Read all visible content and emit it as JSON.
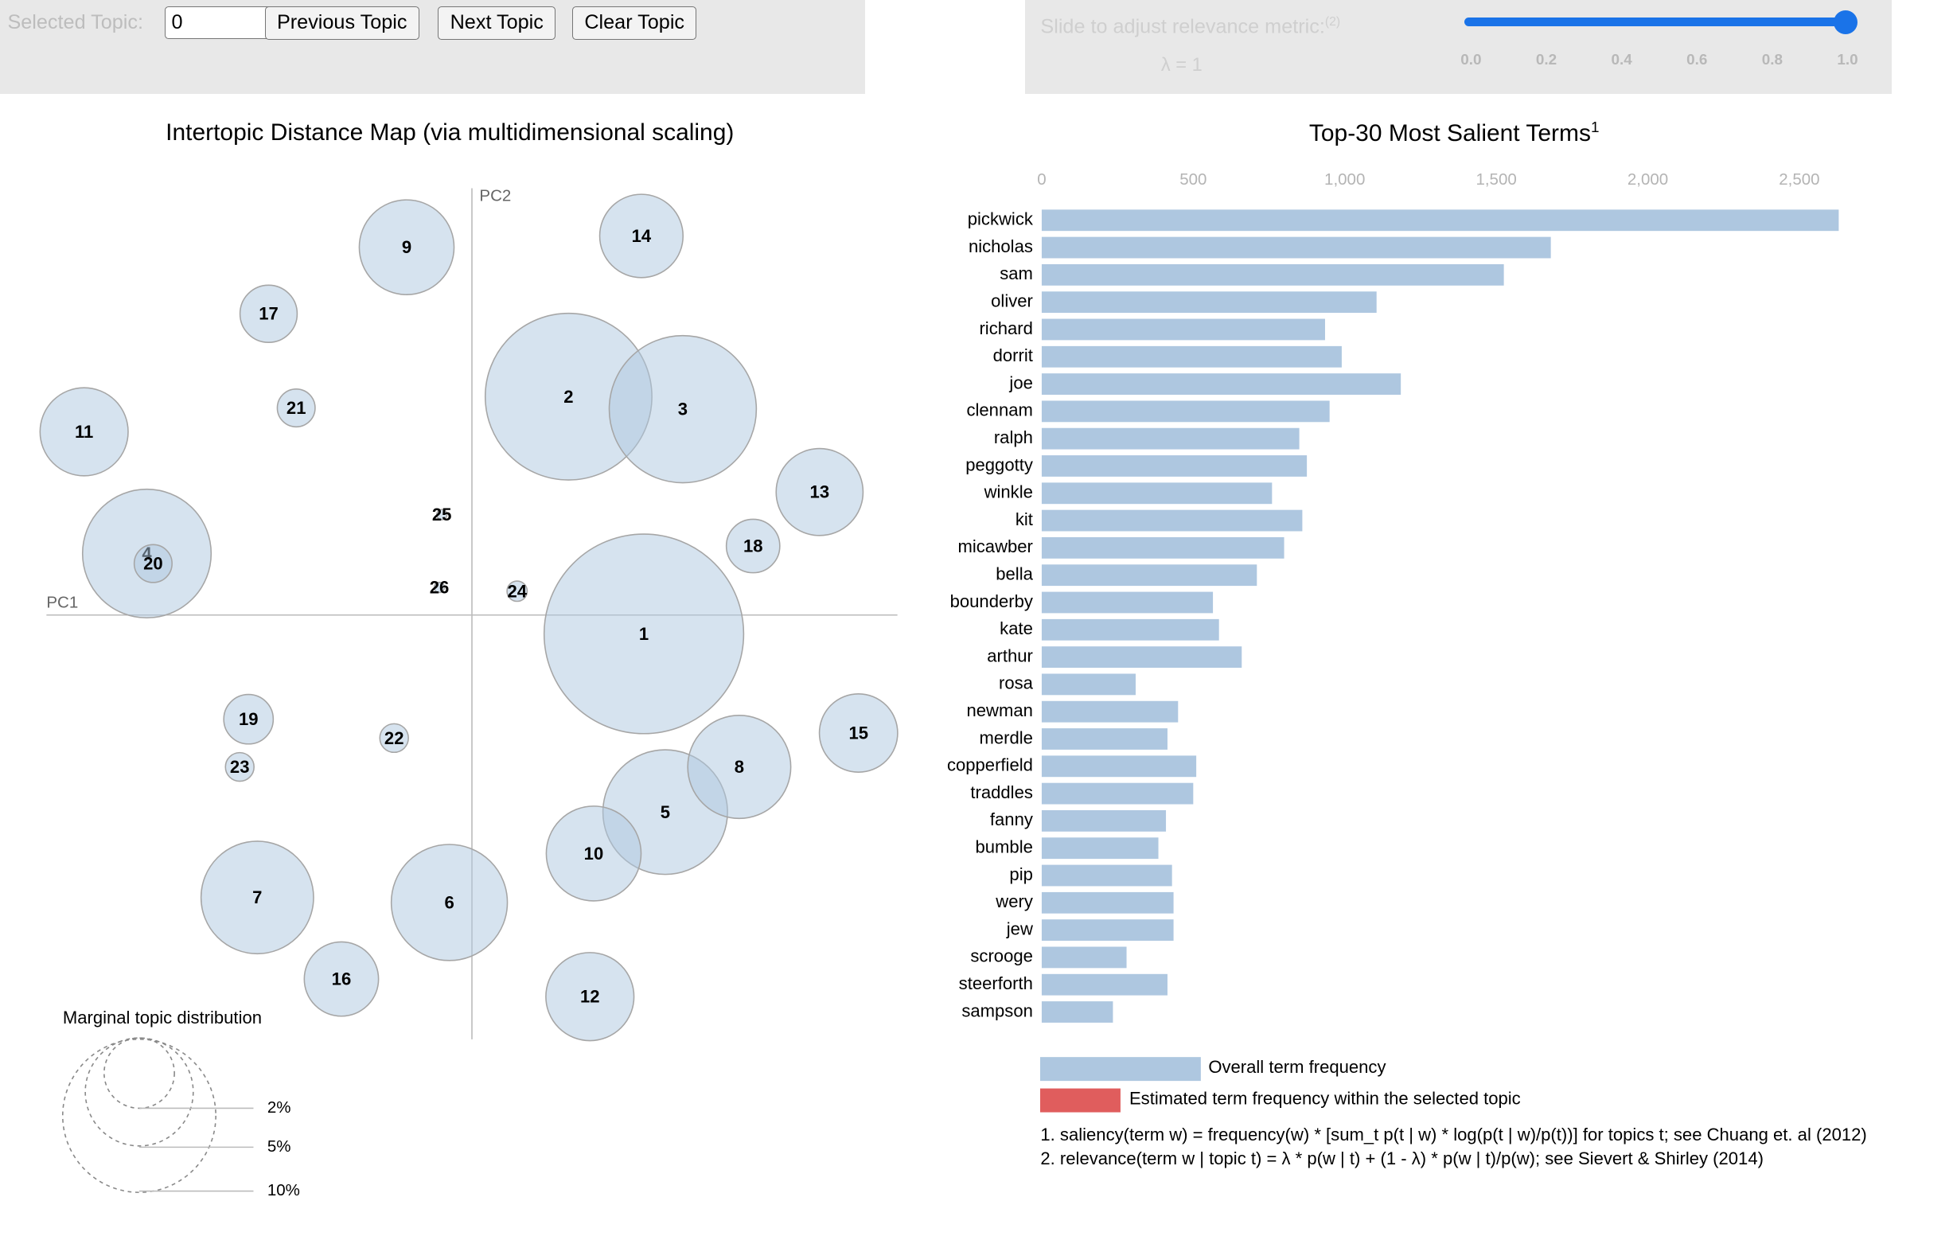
{
  "controls": {
    "selected_topic_label": "Selected Topic:",
    "selected_topic_value": "0",
    "prev_button": "Previous Topic",
    "next_button": "Next Topic",
    "clear_button": "Clear Topic",
    "slider_label": "Slide to adjust relevance metric:",
    "slider_footnote": "(2)",
    "lambda_text": "λ = 1",
    "slider_value": 1.0,
    "slider_ticks": [
      "0.0",
      "0.2",
      "0.4",
      "0.6",
      "0.8",
      "1.0"
    ],
    "accent_color": "#1a73e8"
  },
  "left_panel": {
    "title": "Intertopic Distance Map (via multidimensional scaling)",
    "pc1_label": "PC1",
    "pc2_label": "PC2",
    "circle_color": "#aec7e0",
    "topics": [
      {
        "id": "1",
        "pc1": 0.137,
        "pc2": -0.015,
        "size_pct": 19.5
      },
      {
        "id": "2",
        "pc1": 0.077,
        "pc2": 0.174,
        "size_pct": 13.6
      },
      {
        "id": "3",
        "pc1": 0.168,
        "pc2": 0.164,
        "size_pct": 10.6
      },
      {
        "id": "4",
        "pc1": -0.259,
        "pc2": 0.049,
        "size_pct": 8.1
      },
      {
        "id": "5",
        "pc1": 0.154,
        "pc2": -0.157,
        "size_pct": 7.6
      },
      {
        "id": "6",
        "pc1": -0.018,
        "pc2": -0.229,
        "size_pct": 6.6
      },
      {
        "id": "7",
        "pc1": -0.171,
        "pc2": -0.225,
        "size_pct": 6.2
      },
      {
        "id": "8",
        "pc1": 0.213,
        "pc2": -0.121,
        "size_pct": 5.2
      },
      {
        "id": "9",
        "pc1": -0.052,
        "pc2": 0.293,
        "size_pct": 4.4
      },
      {
        "id": "10",
        "pc1": 0.097,
        "pc2": -0.19,
        "size_pct": 4.4
      },
      {
        "id": "11",
        "pc1": -0.309,
        "pc2": 0.146,
        "size_pct": 3.8
      },
      {
        "id": "12",
        "pc1": 0.094,
        "pc2": -0.304,
        "size_pct": 3.8
      },
      {
        "id": "13",
        "pc1": 0.277,
        "pc2": 0.098,
        "size_pct": 3.7
      },
      {
        "id": "14",
        "pc1": 0.135,
        "pc2": 0.302,
        "size_pct": 3.4
      },
      {
        "id": "15",
        "pc1": 0.308,
        "pc2": -0.094,
        "size_pct": 3.0
      },
      {
        "id": "16",
        "pc1": -0.104,
        "pc2": -0.29,
        "size_pct": 2.7
      },
      {
        "id": "17",
        "pc1": -0.162,
        "pc2": 0.24,
        "size_pct": 1.6
      },
      {
        "id": "18",
        "pc1": 0.224,
        "pc2": 0.055,
        "size_pct": 1.4
      },
      {
        "id": "19",
        "pc1": -0.178,
        "pc2": -0.083,
        "size_pct": 1.2
      },
      {
        "id": "20",
        "pc1": -0.254,
        "pc2": 0.041,
        "size_pct": 0.7
      },
      {
        "id": "21",
        "pc1": -0.14,
        "pc2": 0.165,
        "size_pct": 0.7
      },
      {
        "id": "22",
        "pc1": -0.062,
        "pc2": -0.098,
        "size_pct": 0.4
      },
      {
        "id": "23",
        "pc1": -0.185,
        "pc2": -0.121,
        "size_pct": 0.4
      },
      {
        "id": "24",
        "pc1": 0.036,
        "pc2": 0.019,
        "size_pct": 0.2
      },
      {
        "id": "25",
        "pc1": -0.024,
        "pc2": 0.08,
        "size_pct": 0.05
      },
      {
        "id": "26",
        "pc1": -0.026,
        "pc2": 0.022,
        "size_pct": 0.05
      }
    ],
    "legend": {
      "title": "Marginal topic distribution",
      "entries": [
        "2%",
        "5%",
        "10%"
      ]
    }
  },
  "right_panel": {
    "title": "Top-30 Most Salient Terms",
    "title_footnote": "1",
    "axis_ticks": [
      "0",
      "500",
      "1,000",
      "1,500",
      "2,000",
      "2,500"
    ],
    "bar_color": "#aec7e0",
    "topic_color": "#e05d5d",
    "legend_overall": "Overall term frequency",
    "legend_topic": "Estimated term frequency within the selected topic",
    "footnote_1": "1. saliency(term w) = frequency(w) * [sum_t p(t | w) * log(p(t | w)/p(t))] for topics t; see Chuang et. al (2012)",
    "footnote_2": "2. relevance(term w | topic t) = λ * p(w | t) + (1 - λ) * p(w | t)/p(w); see Sievert & Shirley (2014)"
  },
  "chart_data": {
    "type": "bar",
    "orientation": "horizontal",
    "title": "Top-30 Most Salient Terms",
    "xlabel": "",
    "ylabel": "",
    "xlim": [
      0,
      2700
    ],
    "categories": [
      "pickwick",
      "nicholas",
      "sam",
      "oliver",
      "richard",
      "dorrit",
      "joe",
      "clennam",
      "ralph",
      "peggotty",
      "winkle",
      "kit",
      "micawber",
      "bella",
      "bounderby",
      "kate",
      "arthur",
      "rosa",
      "newman",
      "merdle",
      "copperfield",
      "traddles",
      "fanny",
      "bumble",
      "pip",
      "wery",
      "jew",
      "scrooge",
      "steerforth",
      "sampson"
    ],
    "series": [
      {
        "name": "Overall term frequency",
        "values": [
          2630,
          1680,
          1525,
          1105,
          935,
          990,
          1185,
          950,
          850,
          875,
          760,
          860,
          800,
          710,
          565,
          585,
          660,
          310,
          450,
          415,
          510,
          500,
          410,
          385,
          430,
          435,
          435,
          280,
          415,
          235
        ]
      }
    ]
  }
}
